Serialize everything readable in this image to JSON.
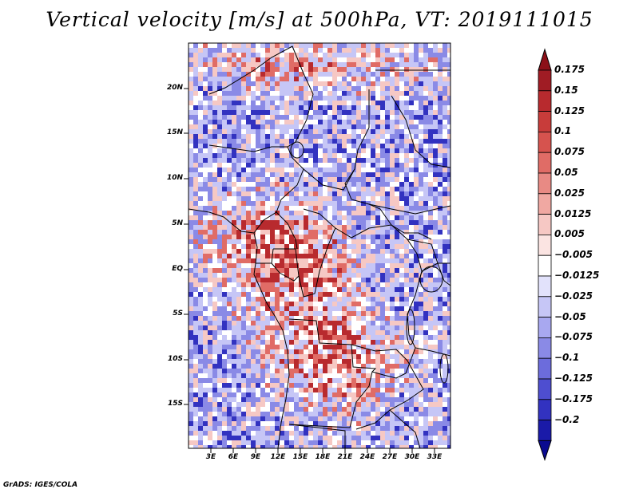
{
  "title": "Vertical velocity [m/s] at 500hPa, VT: 2019111015",
  "credit": "GrADS: IGES/COLA",
  "variable": "vertical velocity",
  "units": "m/s",
  "level": "500hPa",
  "valid_time": "2019111015",
  "lat_ticks": [
    "20N",
    "15N",
    "10N",
    "5N",
    "EQ",
    "5S",
    "10S",
    "15S"
  ],
  "lon_ticks": [
    "3E",
    "6E",
    "9E",
    "12E",
    "15E",
    "18E",
    "21E",
    "24E",
    "27E",
    "30E",
    "33E"
  ],
  "colorbar": {
    "labels": [
      "0.175",
      "0.15",
      "0.125",
      "0.1",
      "0.075",
      "0.05",
      "0.025",
      "0.0125",
      "0.005",
      "−0.005",
      "−0.0125",
      "−0.025",
      "−0.05",
      "−0.075",
      "−0.1",
      "−0.125",
      "−0.175",
      "−0.2"
    ],
    "colors": [
      "#a01c24",
      "#b82a2e",
      "#c83c3a",
      "#d6534e",
      "#e06c66",
      "#e88a84",
      "#f0a8a2",
      "#f6c8c4",
      "#fbe4e2",
      "#ffffff",
      "#e2e2fb",
      "#c6c6f6",
      "#a8a8f0",
      "#8a8ae6",
      "#6c6cdc",
      "#4e4ed0",
      "#3232c0",
      "#1a1aa8"
    ]
  },
  "map_colors": {
    "strong_red": "#b82a2e",
    "red": "#e06c66",
    "light_red": "#f6c8c4",
    "white": "#ffffff",
    "light_blue": "#c6c6f6",
    "blue": "#8a8ae6",
    "strong_blue": "#3232c0"
  }
}
